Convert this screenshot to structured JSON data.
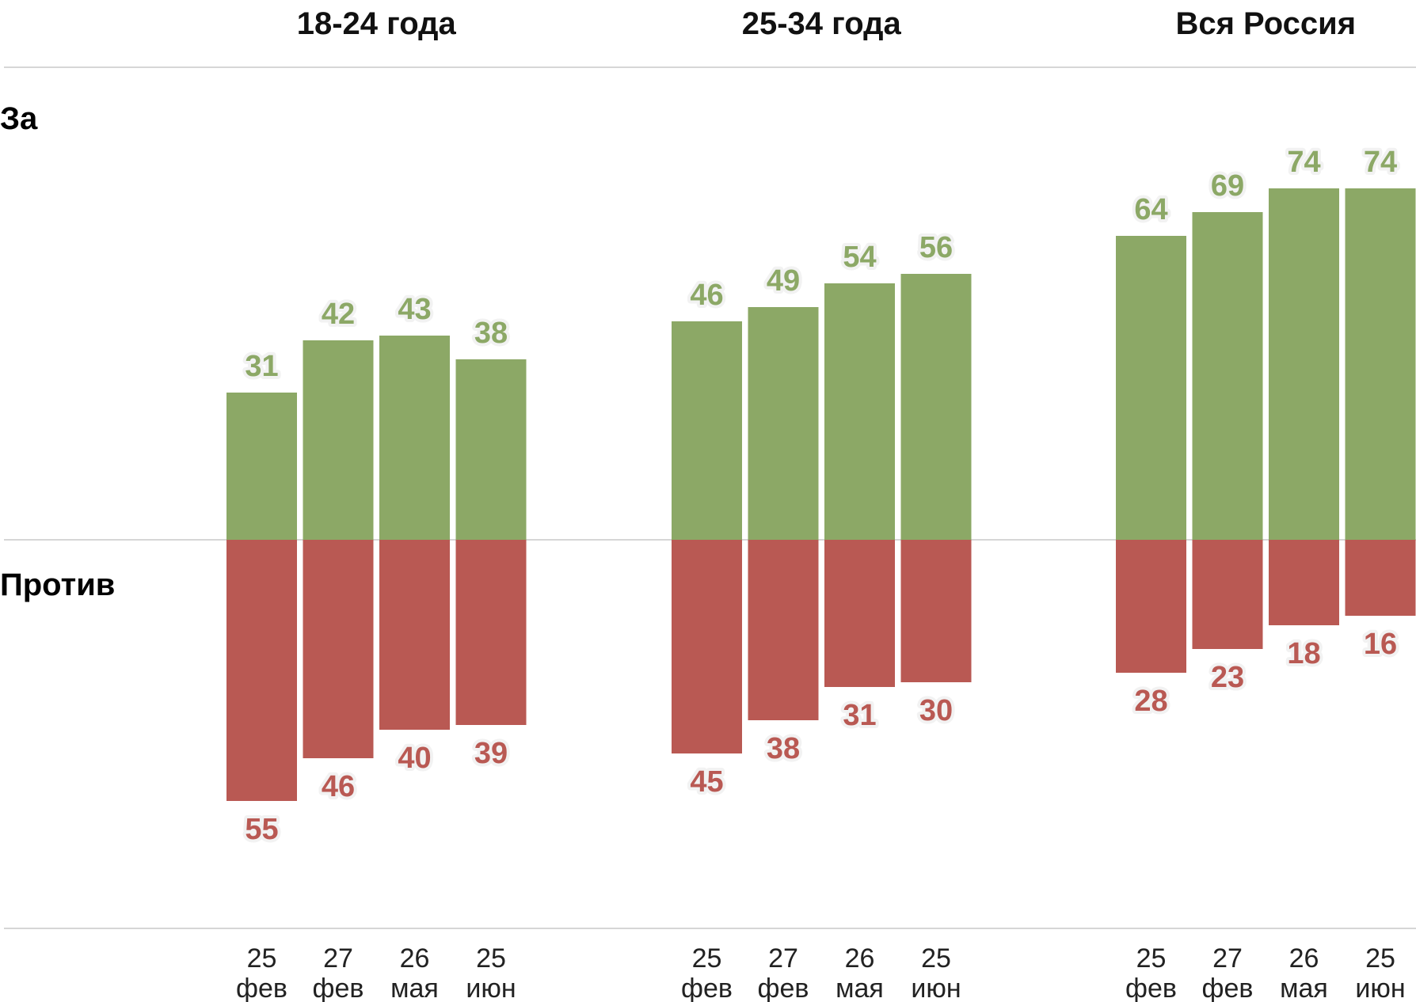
{
  "chart_data": {
    "type": "bar",
    "layout": "diverging-stacked, three panels",
    "side_labels": {
      "positive": "За",
      "negative": "Против"
    },
    "colors": {
      "positive": "#8ca866",
      "negative": "#b95953",
      "axis": "#d6d6d6"
    },
    "categories": [
      {
        "day": "25",
        "month": "фев"
      },
      {
        "day": "27",
        "month": "фев"
      },
      {
        "day": "26",
        "month": "мая"
      },
      {
        "day": "25",
        "month": "июн"
      }
    ],
    "panels": [
      {
        "title": "18-24 года",
        "for": [
          31,
          42,
          43,
          38
        ],
        "against": [
          55,
          46,
          40,
          39
        ]
      },
      {
        "title": "25-34 года",
        "for": [
          46,
          49,
          54,
          56
        ],
        "against": [
          45,
          38,
          31,
          30
        ]
      },
      {
        "title": "Вся Россия",
        "for": [
          64,
          69,
          74,
          74
        ],
        "against": [
          28,
          23,
          18,
          16
        ]
      }
    ],
    "ylim": [
      -55,
      74
    ],
    "legend": "none",
    "grid": false
  }
}
